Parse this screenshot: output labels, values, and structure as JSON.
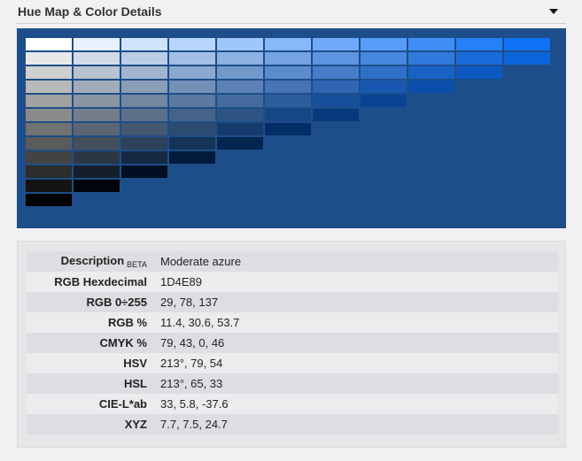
{
  "header": {
    "title": "Hue Map & Color Details",
    "toggle_icon": "triangle-down-icon"
  },
  "hue_map": {
    "background": "#1d4e89",
    "rows": [
      [
        "#ffffff",
        "#e7f1fe",
        "#cfe3fd",
        "#b7d5fc",
        "#9fc7fb",
        "#87b9fa",
        "#6fabf9",
        "#579df8",
        "#3f8ff7",
        "#2781f6",
        "#0f73f5"
      ],
      [
        "#e8e8e8",
        "#d1dbe8",
        "#bacde6",
        "#a3bfe5",
        "#8cb1e3",
        "#75a3e2",
        "#5e95e0",
        "#4787de",
        "#3079dd",
        "#196bdb",
        "#0b65da"
      ],
      [
        "#d0d0d0",
        "#b8c3d1",
        "#a1b5cf",
        "#8aa7ce",
        "#7399cc",
        "#5c8bcb",
        "#457dc9",
        "#2e6fc7",
        "#1861c5",
        "#0b59c1"
      ],
      [
        "#b9b9b9",
        "#a2acb9",
        "#8b9eb8",
        "#7490b7",
        "#5d82b5",
        "#4674b4",
        "#2f66b2",
        "#1858b0",
        "#0a4eab"
      ],
      [
        "#a1a1a1",
        "#8a95a2",
        "#7387a1",
        "#5c799f",
        "#456b9e",
        "#2e5d9c",
        "#174f9a",
        "#084493"
      ],
      [
        "#8a8a8a",
        "#737e8a",
        "#5c7089",
        "#456288",
        "#2e5486",
        "#174684",
        "#063a7c"
      ],
      [
        "#727272",
        "#5b6673",
        "#445871",
        "#2d4a70",
        "#163c6e",
        "#042f66"
      ],
      [
        "#5b5b5b",
        "#444f5b",
        "#2d415a",
        "#163358",
        "#03254f"
      ],
      [
        "#434343",
        "#2c3744",
        "#152942",
        "#021b39"
      ],
      [
        "#2c2c2c",
        "#151f2c",
        "#020f22"
      ],
      [
        "#141414",
        "#01050b"
      ],
      [
        "#000000"
      ]
    ]
  },
  "details": {
    "beta": "BETA",
    "rows": [
      {
        "label": "Description",
        "value": "Moderate azure"
      },
      {
        "label": "RGB Hexdecimal",
        "value": "1D4E89"
      },
      {
        "label": "RGB 0÷255",
        "value": "29, 78, 137"
      },
      {
        "label": "RGB %",
        "value": "11.4, 30.6, 53.7"
      },
      {
        "label": "CMYK %",
        "value": "79, 43, 0, 46"
      },
      {
        "label": "HSV",
        "value": "213°, 79, 54"
      },
      {
        "label": "HSL",
        "value": "213°, 65, 33"
      },
      {
        "label": "CIE-L*ab",
        "value": "33, 5.8, -37.6"
      },
      {
        "label": "XYZ",
        "value": "7.7, 7.5, 24.7"
      }
    ]
  }
}
